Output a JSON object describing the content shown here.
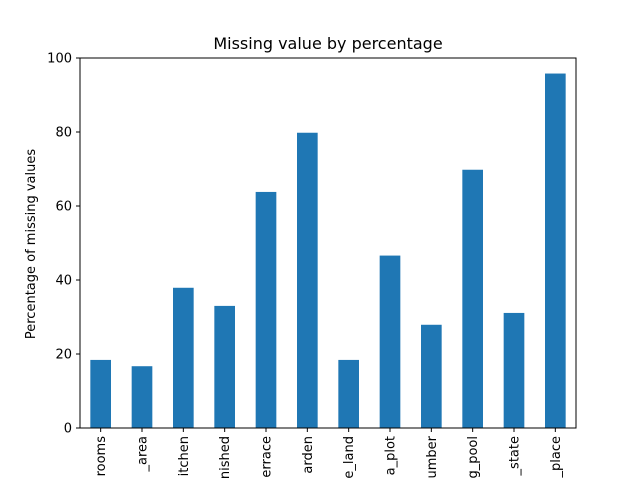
{
  "chart_data": {
    "type": "bar",
    "title": "Missing value by percentage",
    "xlabel": "",
    "ylabel": "Percentage of missing values",
    "categories": [
      "rooms",
      "_area",
      "itchen",
      "nished",
      "errace",
      "arden",
      "e_land",
      "a_plot",
      "umber",
      "g_pool",
      "_state",
      "_place"
    ],
    "values": [
      18.4,
      16.7,
      37.9,
      33.0,
      63.8,
      79.8,
      18.4,
      46.6,
      27.9,
      69.8,
      31.1,
      95.8
    ],
    "yticks": [
      "0",
      "20",
      "40",
      "60",
      "80",
      "100"
    ],
    "ylim": [
      0,
      100
    ],
    "grid": false,
    "legend": "none",
    "bar_color": "#1f77b4"
  }
}
